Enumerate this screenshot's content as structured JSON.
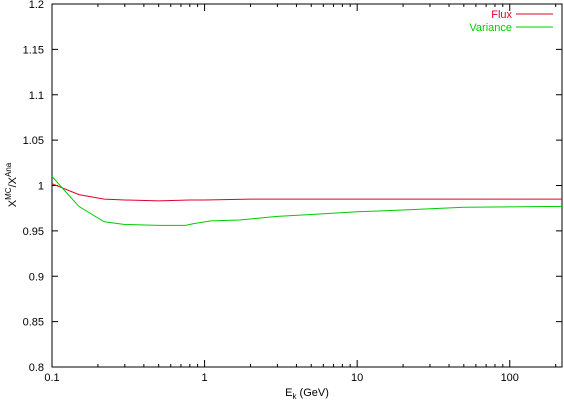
{
  "chart_data": {
    "type": "line",
    "xscale": "log",
    "xlim": [
      0.1,
      220
    ],
    "ylim": [
      0.8,
      1.2
    ],
    "x_ticks": [
      0.1,
      1,
      10,
      100
    ],
    "x_tick_labels": [
      "0.1",
      "1",
      "10",
      "100"
    ],
    "y_ticks": [
      0.8,
      0.85,
      0.9,
      0.95,
      1.0,
      1.05,
      1.1,
      1.15,
      1.2
    ],
    "y_tick_labels": [
      "0.8",
      "0.85",
      "0.9",
      "0.95",
      "1",
      "1.05",
      "1.1",
      "1.15",
      "1.2"
    ],
    "xlabel": {
      "base": "E",
      "sub": "k",
      "rest": " (GeV)"
    },
    "ylabel": {
      "x1": "X",
      "sup1": "MC",
      "slash": "/",
      "x2": "X",
      "sup2": "Ana"
    },
    "grid": false,
    "legend_position": "top-right",
    "series": [
      {
        "name": "Flux",
        "color": "#e0002a",
        "points": [
          [
            0.1,
            1.002
          ],
          [
            0.15,
            0.99
          ],
          [
            0.22,
            0.985
          ],
          [
            0.3,
            0.984
          ],
          [
            0.5,
            0.983
          ],
          [
            0.8,
            0.984
          ],
          [
            1,
            0.984
          ],
          [
            2,
            0.985
          ],
          [
            5,
            0.985
          ],
          [
            10,
            0.985
          ],
          [
            50,
            0.985
          ],
          [
            220,
            0.985
          ]
        ]
      },
      {
        "name": "Variance",
        "color": "#00cc00",
        "points": [
          [
            0.1,
            1.01
          ],
          [
            0.12,
            0.995
          ],
          [
            0.15,
            0.977
          ],
          [
            0.22,
            0.96
          ],
          [
            0.3,
            0.957
          ],
          [
            0.5,
            0.956
          ],
          [
            0.75,
            0.956
          ],
          [
            0.85,
            0.958
          ],
          [
            1.1,
            0.961
          ],
          [
            1.7,
            0.962
          ],
          [
            3,
            0.966
          ],
          [
            5,
            0.968
          ],
          [
            10,
            0.971
          ],
          [
            20,
            0.973
          ],
          [
            50,
            0.976
          ],
          [
            220,
            0.977
          ]
        ]
      }
    ]
  }
}
